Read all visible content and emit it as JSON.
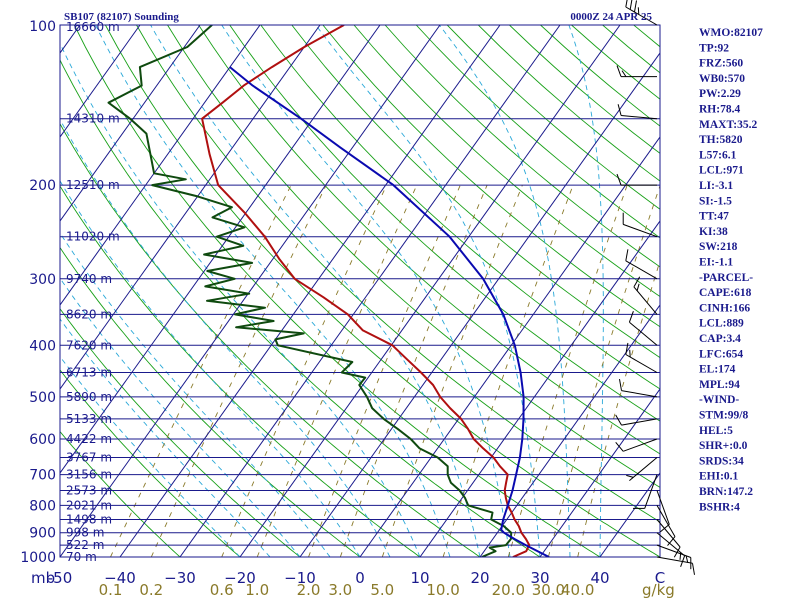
{
  "header": {
    "station_title": "SB107 (82107) Sounding",
    "valid_time": "0000Z 24 APR 25"
  },
  "indices": [
    "WMO:82107",
    "TP:92",
    "FRZ:560",
    "WB0:570",
    "PW:2.29",
    "RH:78.4",
    "MAXT:35.2",
    "TH:5820",
    "L57:6.1",
    "LCL:971",
    "LI:-3.1",
    "SI:-1.5",
    "TT:47",
    "KI:38",
    "SW:218",
    "EI:-1.1",
    "-PARCEL-",
    "CAPE:618",
    "CINH:166",
    "LCL:889",
    "CAP:3.4",
    "LFC:654",
    "EL:174",
    "MPL:94",
    "-WIND-",
    "STM:99/8",
    "HEL:5",
    "SHR+:0.0",
    "SRDS:34",
    "EHI:0.1",
    "BRN:147.2",
    "BSHR:4"
  ],
  "chart_data": {
    "type": "skew-t",
    "title": "SB107 (82107) Sounding",
    "xlabel_unit_left": "mb",
    "xlabel_unit_right": "C",
    "mixing_unit": "g/kg",
    "ylabel": "",
    "p_range_mb": [
      1000,
      100
    ],
    "t_range_c": [
      -50,
      50
    ],
    "pressure_ticks": [
      100,
      200,
      300,
      400,
      500,
      600,
      700,
      800,
      900,
      1000
    ],
    "temperature_ticks": [
      -50,
      -40,
      -30,
      -20,
      -10,
      0,
      10,
      20,
      30,
      40,
      50
    ],
    "temperature_tick_labels": [
      "-50",
      "−40",
      "−30",
      "−20",
      "−10",
      "0",
      "10",
      "20",
      "30",
      "40",
      "C"
    ],
    "mixing_ratio_ticks": [
      "0.1",
      "0.2",
      "0.6",
      "1.0",
      "2.0",
      "3.0",
      "5.0",
      "10.0",
      "20.0",
      "30.0",
      "40.0"
    ],
    "height_levels": [
      {
        "p": 100,
        "label": "16660 m"
      },
      {
        "p": 150,
        "label": "14310 m"
      },
      {
        "p": 200,
        "label": "12510 m"
      },
      {
        "p": 250,
        "label": "11020 m"
      },
      {
        "p": 300,
        "label": "9740 m"
      },
      {
        "p": 350,
        "label": "8620 m"
      },
      {
        "p": 400,
        "label": "7620 m"
      },
      {
        "p": 450,
        "label": "6713 m"
      },
      {
        "p": 500,
        "label": "5890 m"
      },
      {
        "p": 550,
        "label": "5133 m"
      },
      {
        "p": 600,
        "label": "4422 m"
      },
      {
        "p": 650,
        "label": "3767 m"
      },
      {
        "p": 700,
        "label": "3156 m"
      },
      {
        "p": 750,
        "label": "2573 m"
      },
      {
        "p": 800,
        "label": "2021 m"
      },
      {
        "p": 850,
        "label": "1498 m"
      },
      {
        "p": 900,
        "label": "998 m"
      },
      {
        "p": 950,
        "label": "522 m"
      },
      {
        "p": 1000,
        "label": "70 m"
      }
    ],
    "series": [
      {
        "role": "temperature",
        "color": "#b01010",
        "p": [
          1000,
          975,
          950,
          925,
          900,
          875,
          850,
          825,
          800,
          775,
          750,
          725,
          700,
          675,
          650,
          625,
          600,
          575,
          550,
          525,
          500,
          475,
          450,
          425,
          400,
          375,
          350,
          325,
          300,
          275,
          250,
          225,
          200,
          175,
          150,
          140,
          130,
          120,
          110,
          100
        ],
        "t": [
          25.5,
          27.0,
          26.8,
          25.5,
          24.0,
          22.8,
          21.3,
          20.0,
          18.5,
          17.3,
          16.2,
          15.5,
          14.8,
          12.5,
          10.4,
          7.6,
          4.9,
          2.8,
          0.4,
          -2.7,
          -5.7,
          -8.3,
          -11.8,
          -15.7,
          -19.8,
          -26.5,
          -30.9,
          -37.0,
          -44.0,
          -49.0,
          -54.0,
          -60.3,
          -67.9,
          -73.0,
          -78.5,
          -77.0,
          -75.5,
          -73.0,
          -70.0,
          -66.0
        ]
      },
      {
        "role": "dewpoint",
        "color": "#0f4a0f",
        "p": [
          1000,
          975,
          960,
          950,
          925,
          900,
          875,
          850,
          825,
          800,
          775,
          750,
          725,
          700,
          675,
          650,
          625,
          600,
          575,
          550,
          525,
          500,
          475,
          460,
          450,
          430,
          400,
          390,
          380,
          370,
          360,
          350,
          340,
          330,
          320,
          310,
          300,
          290,
          280,
          270,
          260,
          250,
          240,
          230,
          220,
          210,
          200,
          195,
          190,
          160,
          150,
          140,
          130,
          120,
          110,
          100
        ],
        "t": [
          20.3,
          21.9,
          20.5,
          22.9,
          23.0,
          22.3,
          20.3,
          17.4,
          16.8,
          11.9,
          10.5,
          8.7,
          6.3,
          4.8,
          3.8,
          1.1,
          -3.0,
          -5.6,
          -8.9,
          -12.5,
          -15.7,
          -17.9,
          -20.6,
          -20.5,
          -25.0,
          -24.5,
          -38.9,
          -40.0,
          -36.0,
          -48.0,
          -42.5,
          -49.7,
          -45.5,
          -56.0,
          -49.8,
          -58.0,
          -54.0,
          -59.5,
          -53.0,
          -62.0,
          -56.5,
          -62.0,
          -58.5,
          -65.0,
          -63.0,
          -70.0,
          -78.9,
          -74.0,
          -80.0,
          -86.0,
          -90.5,
          -96.0,
          -92.5,
          -95.0,
          -89.5,
          -88.0
        ]
      },
      {
        "role": "parcel",
        "color": "#0a0ab0",
        "p": [
          1000,
          950,
          925,
          900,
          889,
          850,
          800,
          750,
          700,
          650,
          600,
          550,
          500,
          450,
          400,
          350,
          300,
          250,
          200,
          170,
          150,
          130,
          120
        ],
        "t": [
          31.5,
          26.2,
          23.6,
          21.1,
          20.3,
          19.4,
          18.5,
          17.5,
          16.2,
          14.8,
          13.0,
          10.8,
          8.2,
          4.8,
          0.6,
          -5.0,
          -12.6,
          -23.2,
          -38.7,
          -52.0,
          -62.0,
          -74.0,
          -80.0
        ]
      }
    ],
    "wind_barbs": [
      {
        "p": 1000,
        "dir": 100,
        "spd_kt": 10
      },
      {
        "p": 950,
        "dir": 110,
        "spd_kt": 15
      },
      {
        "p": 900,
        "dir": 130,
        "spd_kt": 15
      },
      {
        "p": 850,
        "dir": 140,
        "spd_kt": 10
      },
      {
        "p": 800,
        "dir": 150,
        "spd_kt": 10
      },
      {
        "p": 750,
        "dir": 160,
        "spd_kt": 10
      },
      {
        "p": 700,
        "dir": 200,
        "spd_kt": 10
      },
      {
        "p": 650,
        "dir": 230,
        "spd_kt": 5
      },
      {
        "p": 600,
        "dir": 250,
        "spd_kt": 10
      },
      {
        "p": 550,
        "dir": 260,
        "spd_kt": 10
      },
      {
        "p": 500,
        "dir": 280,
        "spd_kt": 10
      },
      {
        "p": 450,
        "dir": 300,
        "spd_kt": 15
      },
      {
        "p": 400,
        "dir": 310,
        "spd_kt": 10
      },
      {
        "p": 350,
        "dir": 320,
        "spd_kt": 15
      },
      {
        "p": 300,
        "dir": 300,
        "spd_kt": 10
      },
      {
        "p": 250,
        "dir": 290,
        "spd_kt": 10
      },
      {
        "p": 200,
        "dir": 270,
        "spd_kt": 10
      },
      {
        "p": 150,
        "dir": 275,
        "spd_kt": 10
      },
      {
        "p": 125,
        "dir": 270,
        "spd_kt": 15
      },
      {
        "p": 100,
        "dir": 300,
        "spd_kt": 35
      }
    ],
    "colors": {
      "frame": "#1a1a8c",
      "isobar": "#1a1a8c",
      "isotherm": "#1a1a8c",
      "dry_adiabat": "#18a018",
      "moist_adiabat": "#2aa8d8",
      "mixing_ratio": "#8a7a2a",
      "barb": "#000000"
    }
  }
}
